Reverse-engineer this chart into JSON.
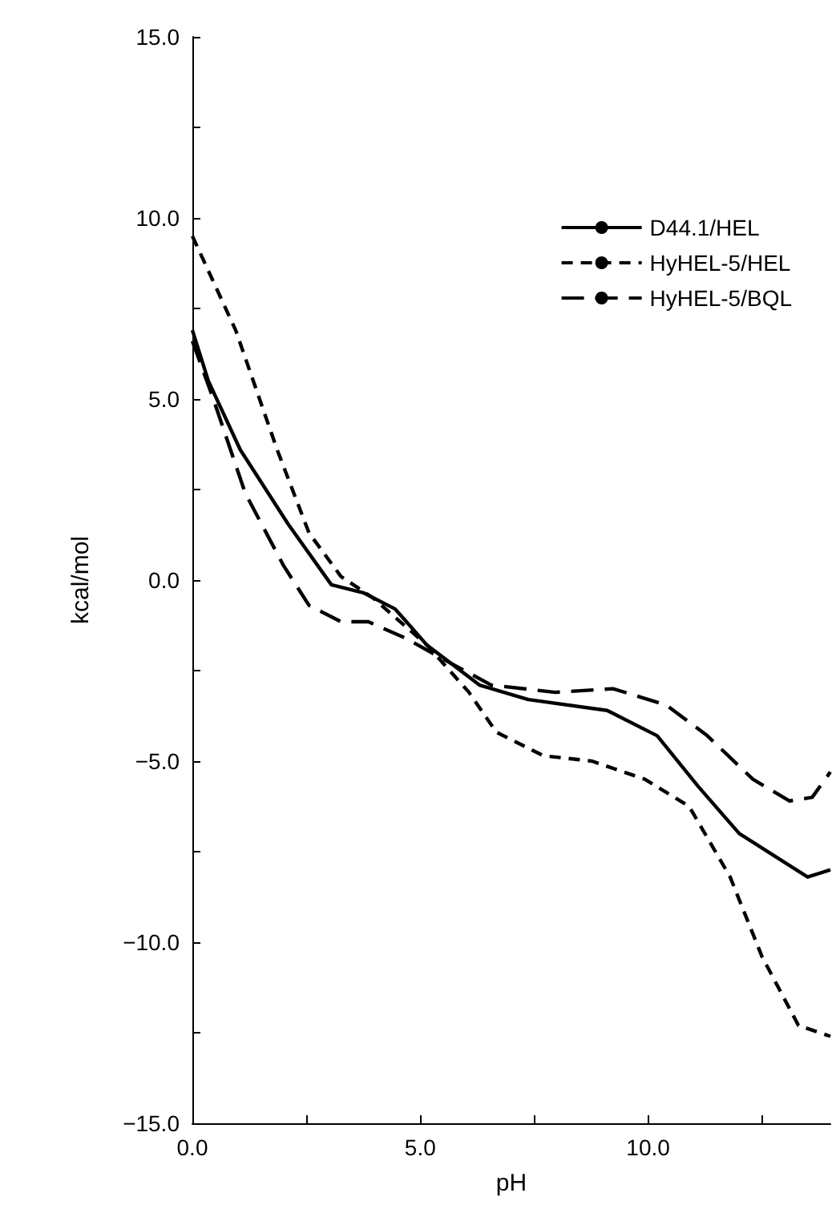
{
  "chart_data": {
    "type": "line",
    "xlabel": "pH",
    "ylabel": "kcal/mol",
    "xlim": [
      0,
      14
    ],
    "ylim": [
      -15,
      15
    ],
    "xticks": [
      {
        "value": 0,
        "label": "0.0"
      },
      {
        "value": 2.5,
        "label": null
      },
      {
        "value": 5,
        "label": "5.0"
      },
      {
        "value": 7.5,
        "label": null
      },
      {
        "value": 10,
        "label": "10.0"
      },
      {
        "value": 12.5,
        "label": null
      }
    ],
    "yticks": [
      {
        "value": -15,
        "label": "−15.0"
      },
      {
        "value": -12.5,
        "label": null
      },
      {
        "value": -10,
        "label": "−10.0"
      },
      {
        "value": -7.5,
        "label": null
      },
      {
        "value": -5,
        "label": "−5.0"
      },
      {
        "value": -2.5,
        "label": null
      },
      {
        "value": 0,
        "label": "0.0"
      },
      {
        "value": 2.5,
        "label": null
      },
      {
        "value": 5,
        "label": "5.0"
      },
      {
        "value": 7.5,
        "label": null
      },
      {
        "value": 10,
        "label": "10.0"
      },
      {
        "value": 12.5,
        "label": null
      },
      {
        "value": 15,
        "label": "15.0"
      }
    ],
    "grid": false,
    "legend": "top right",
    "marker": "none",
    "series": [
      {
        "name": "D44.1/HEL",
        "color": "#000000",
        "line_style": "solid",
        "x": [
          0,
          0.35,
          1.05,
          2.1,
          3.05,
          3.75,
          4.45,
          5.15,
          6.3,
          7.37,
          9.1,
          10.2,
          11.1,
          12.0,
          13.5,
          14
        ],
        "values": [
          6.9,
          5.5,
          3.6,
          1.55,
          -0.13,
          -0.35,
          -0.8,
          -1.8,
          -2.9,
          -3.3,
          -3.6,
          -4.3,
          -5.7,
          -7.0,
          -8.2,
          -8.0
        ]
      },
      {
        "name": "HyHEL-5/HEL",
        "color": "#000000",
        "line_style": "dotted",
        "x": [
          0,
          0.95,
          1.86,
          2.56,
          3.26,
          3.97,
          5.15,
          6.07,
          6.67,
          7.7,
          8.77,
          9.93,
          10.9,
          11.8,
          12.5,
          13.3,
          14
        ],
        "values": [
          9.5,
          6.9,
          3.6,
          1.3,
          0.1,
          -0.5,
          -1.8,
          -3.1,
          -4.2,
          -4.85,
          -5.0,
          -5.5,
          -6.25,
          -8.2,
          -10.4,
          -12.3,
          -12.6
        ]
      },
      {
        "name": "HyHEL-5/BQL",
        "color": "#000000",
        "line_style": "dashed",
        "x": [
          0,
          0.46,
          1.16,
          2.0,
          2.56,
          3.26,
          3.86,
          4.67,
          5.6,
          6.56,
          7.96,
          9.23,
          10.4,
          11.3,
          12.3,
          13.1,
          13.6,
          14
        ],
        "values": [
          6.6,
          5.0,
          2.4,
          0.4,
          -0.7,
          -1.15,
          -1.15,
          -1.6,
          -2.25,
          -2.9,
          -3.1,
          -3.0,
          -3.45,
          -4.3,
          -5.5,
          -6.1,
          -6.0,
          -5.3
        ]
      }
    ]
  }
}
